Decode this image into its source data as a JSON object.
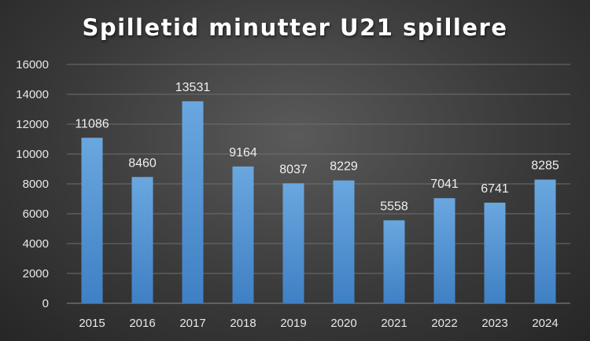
{
  "chart_data": {
    "type": "bar",
    "title": "Spilletid minutter U21 spillere",
    "xlabel": "",
    "ylabel": "",
    "categories": [
      "2015",
      "2016",
      "2017",
      "2018",
      "2019",
      "2020",
      "2021",
      "2022",
      "2023",
      "2024"
    ],
    "values": [
      11086,
      8460,
      13531,
      9164,
      8037,
      8229,
      5558,
      7041,
      6741,
      8285
    ],
    "ylim": [
      0,
      16000
    ],
    "yticks": [
      0,
      2000,
      4000,
      6000,
      8000,
      10000,
      12000,
      14000,
      16000
    ],
    "grid": true,
    "legend": "none",
    "bar_color": "#5b9bd5",
    "background_color": "#3a3a3a"
  }
}
